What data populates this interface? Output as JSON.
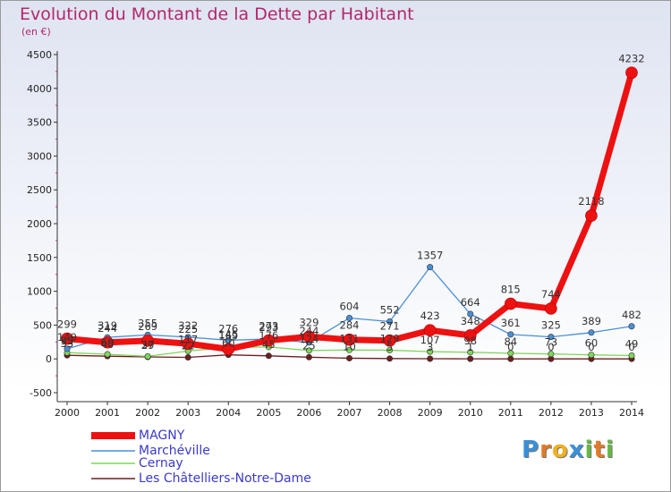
{
  "header": {
    "title": "Evolution du Montant de la Dette par Habitant",
    "subtitle": "(en €)"
  },
  "brand": {
    "logo_text": "Proxiti"
  },
  "chart_data": {
    "type": "line",
    "title": "Evolution du Montant de la Dette par Habitant",
    "subtitle": "(en €)",
    "xlabel": "",
    "ylabel": "",
    "x": [
      2000,
      2001,
      2002,
      2003,
      2004,
      2005,
      2006,
      2007,
      2008,
      2009,
      2010,
      2011,
      2012,
      2013,
      2014
    ],
    "ylim": [
      -500,
      4500
    ],
    "yticks": [
      -500,
      0,
      500,
      1000,
      1500,
      2000,
      2500,
      3000,
      3500,
      4000,
      4500
    ],
    "grid": false,
    "legend_position": "bottom-left",
    "series": [
      {
        "name": "MAGNY",
        "color": "#ee1111",
        "values": [
          299,
          244,
          269,
          225,
          145,
          273,
          329,
          284,
          271,
          423,
          348,
          815,
          744,
          2118,
          4232
        ],
        "labels": [
          "299",
          "244",
          "269",
          "225",
          "145",
          "273",
          "329",
          "284",
          "271",
          "423",
          "348",
          "815",
          "744",
          "2118",
          "4232"
        ]
      },
      {
        "name": "Marchéville",
        "color": "#4a8fd6",
        "values": [
          149,
          319,
          355,
          322,
          276,
          293,
          244,
          604,
          552,
          1357,
          664,
          361,
          325,
          389,
          482
        ],
        "labels": [
          "149",
          "319",
          "355",
          "322",
          "276",
          "293",
          "244",
          "604",
          "552",
          "1357",
          "664",
          "361",
          "325",
          "389",
          "482"
        ]
      },
      {
        "name": "Cernay",
        "color": "#7fd65a",
        "values": [
          93,
          69,
          37,
          117,
          169,
          176,
          124,
          131,
          129,
          107,
          98,
          84,
          73,
          60,
          49
        ],
        "labels": [
          "93",
          "69",
          "37",
          "117",
          "169",
          "176",
          "124",
          "131",
          "129",
          "107",
          "98",
          "84",
          "73",
          "60",
          "49"
        ]
      },
      {
        "name": "Les Châtelliers-Notre-Dame",
        "color": "#6b1f1f",
        "values": [
          53,
          40,
          29,
          22,
          60,
          45,
          25,
          10,
          5,
          3,
          1,
          0,
          0,
          0,
          0
        ],
        "labels": [
          "53",
          "40",
          "29",
          "22",
          "60",
          "45",
          "25",
          "10",
          "5",
          "3",
          "1",
          "0",
          "0",
          "0",
          "0"
        ]
      }
    ]
  }
}
